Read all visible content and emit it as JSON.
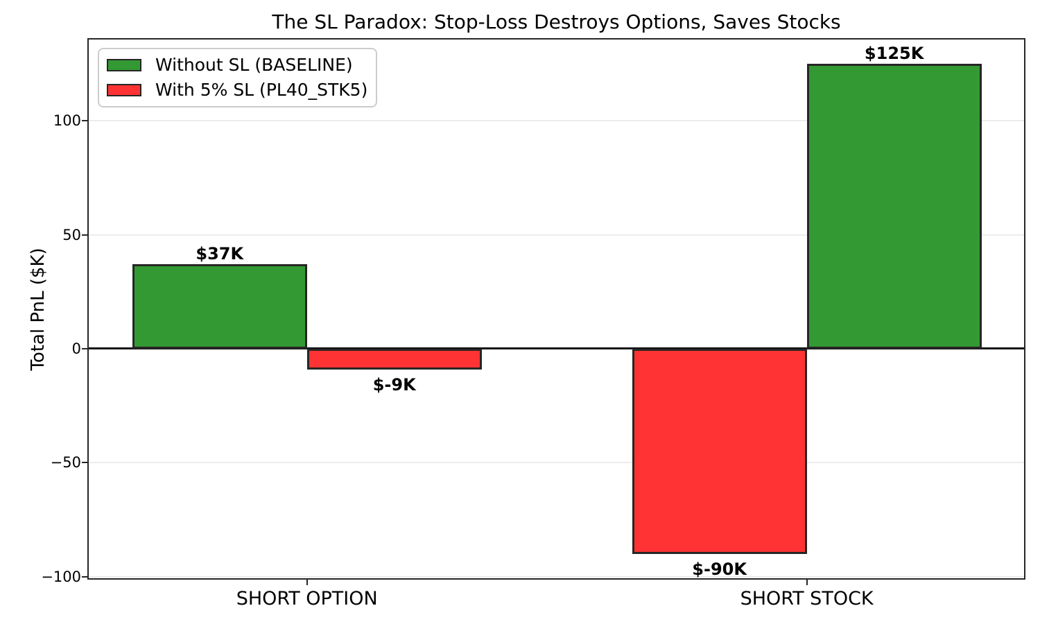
{
  "chart_data": {
    "type": "bar",
    "title": "The SL Paradox: Stop-Loss Destroys Options, Saves Stocks",
    "ylabel": "Total PnL ($K)",
    "xlabel": "",
    "ylim": [
      -100.75,
      135.75
    ],
    "yticks": [
      {
        "value": 100,
        "label": "100"
      },
      {
        "value": 50,
        "label": "50"
      },
      {
        "value": 0,
        "label": "0"
      },
      {
        "value": -50,
        "label": "−50"
      },
      {
        "value": -100,
        "label": "−100"
      }
    ],
    "categories": [
      "SHORT OPTION",
      "SHORT STOCK"
    ],
    "groups": [
      {
        "category": "SHORT OPTION",
        "bars": [
          {
            "series": "Without SL (BASELINE)",
            "value": 37,
            "label": "$37K",
            "color": "#339933"
          },
          {
            "series": "With 5% SL (PL40_STK5)",
            "value": -9,
            "label": "$-9K",
            "color": "#ff3333"
          }
        ]
      },
      {
        "category": "SHORT STOCK",
        "bars": [
          {
            "series": "With 5% SL (PL40_STK5)",
            "value": -90,
            "label": "$-90K",
            "color": "#ff3333"
          },
          {
            "series": "Without SL (BASELINE)",
            "value": 125,
            "label": "$125K",
            "color": "#339933"
          }
        ]
      }
    ],
    "legend": [
      {
        "label": "Without SL (BASELINE)",
        "color": "#339933"
      },
      {
        "label": "With 5% SL (PL40_STK5)",
        "color": "#ff3333"
      }
    ],
    "grid": true,
    "legend_position": "upper left",
    "colors": {
      "baseline": "#339933",
      "stoploss": "#ff3333",
      "edge": "#262626"
    }
  }
}
